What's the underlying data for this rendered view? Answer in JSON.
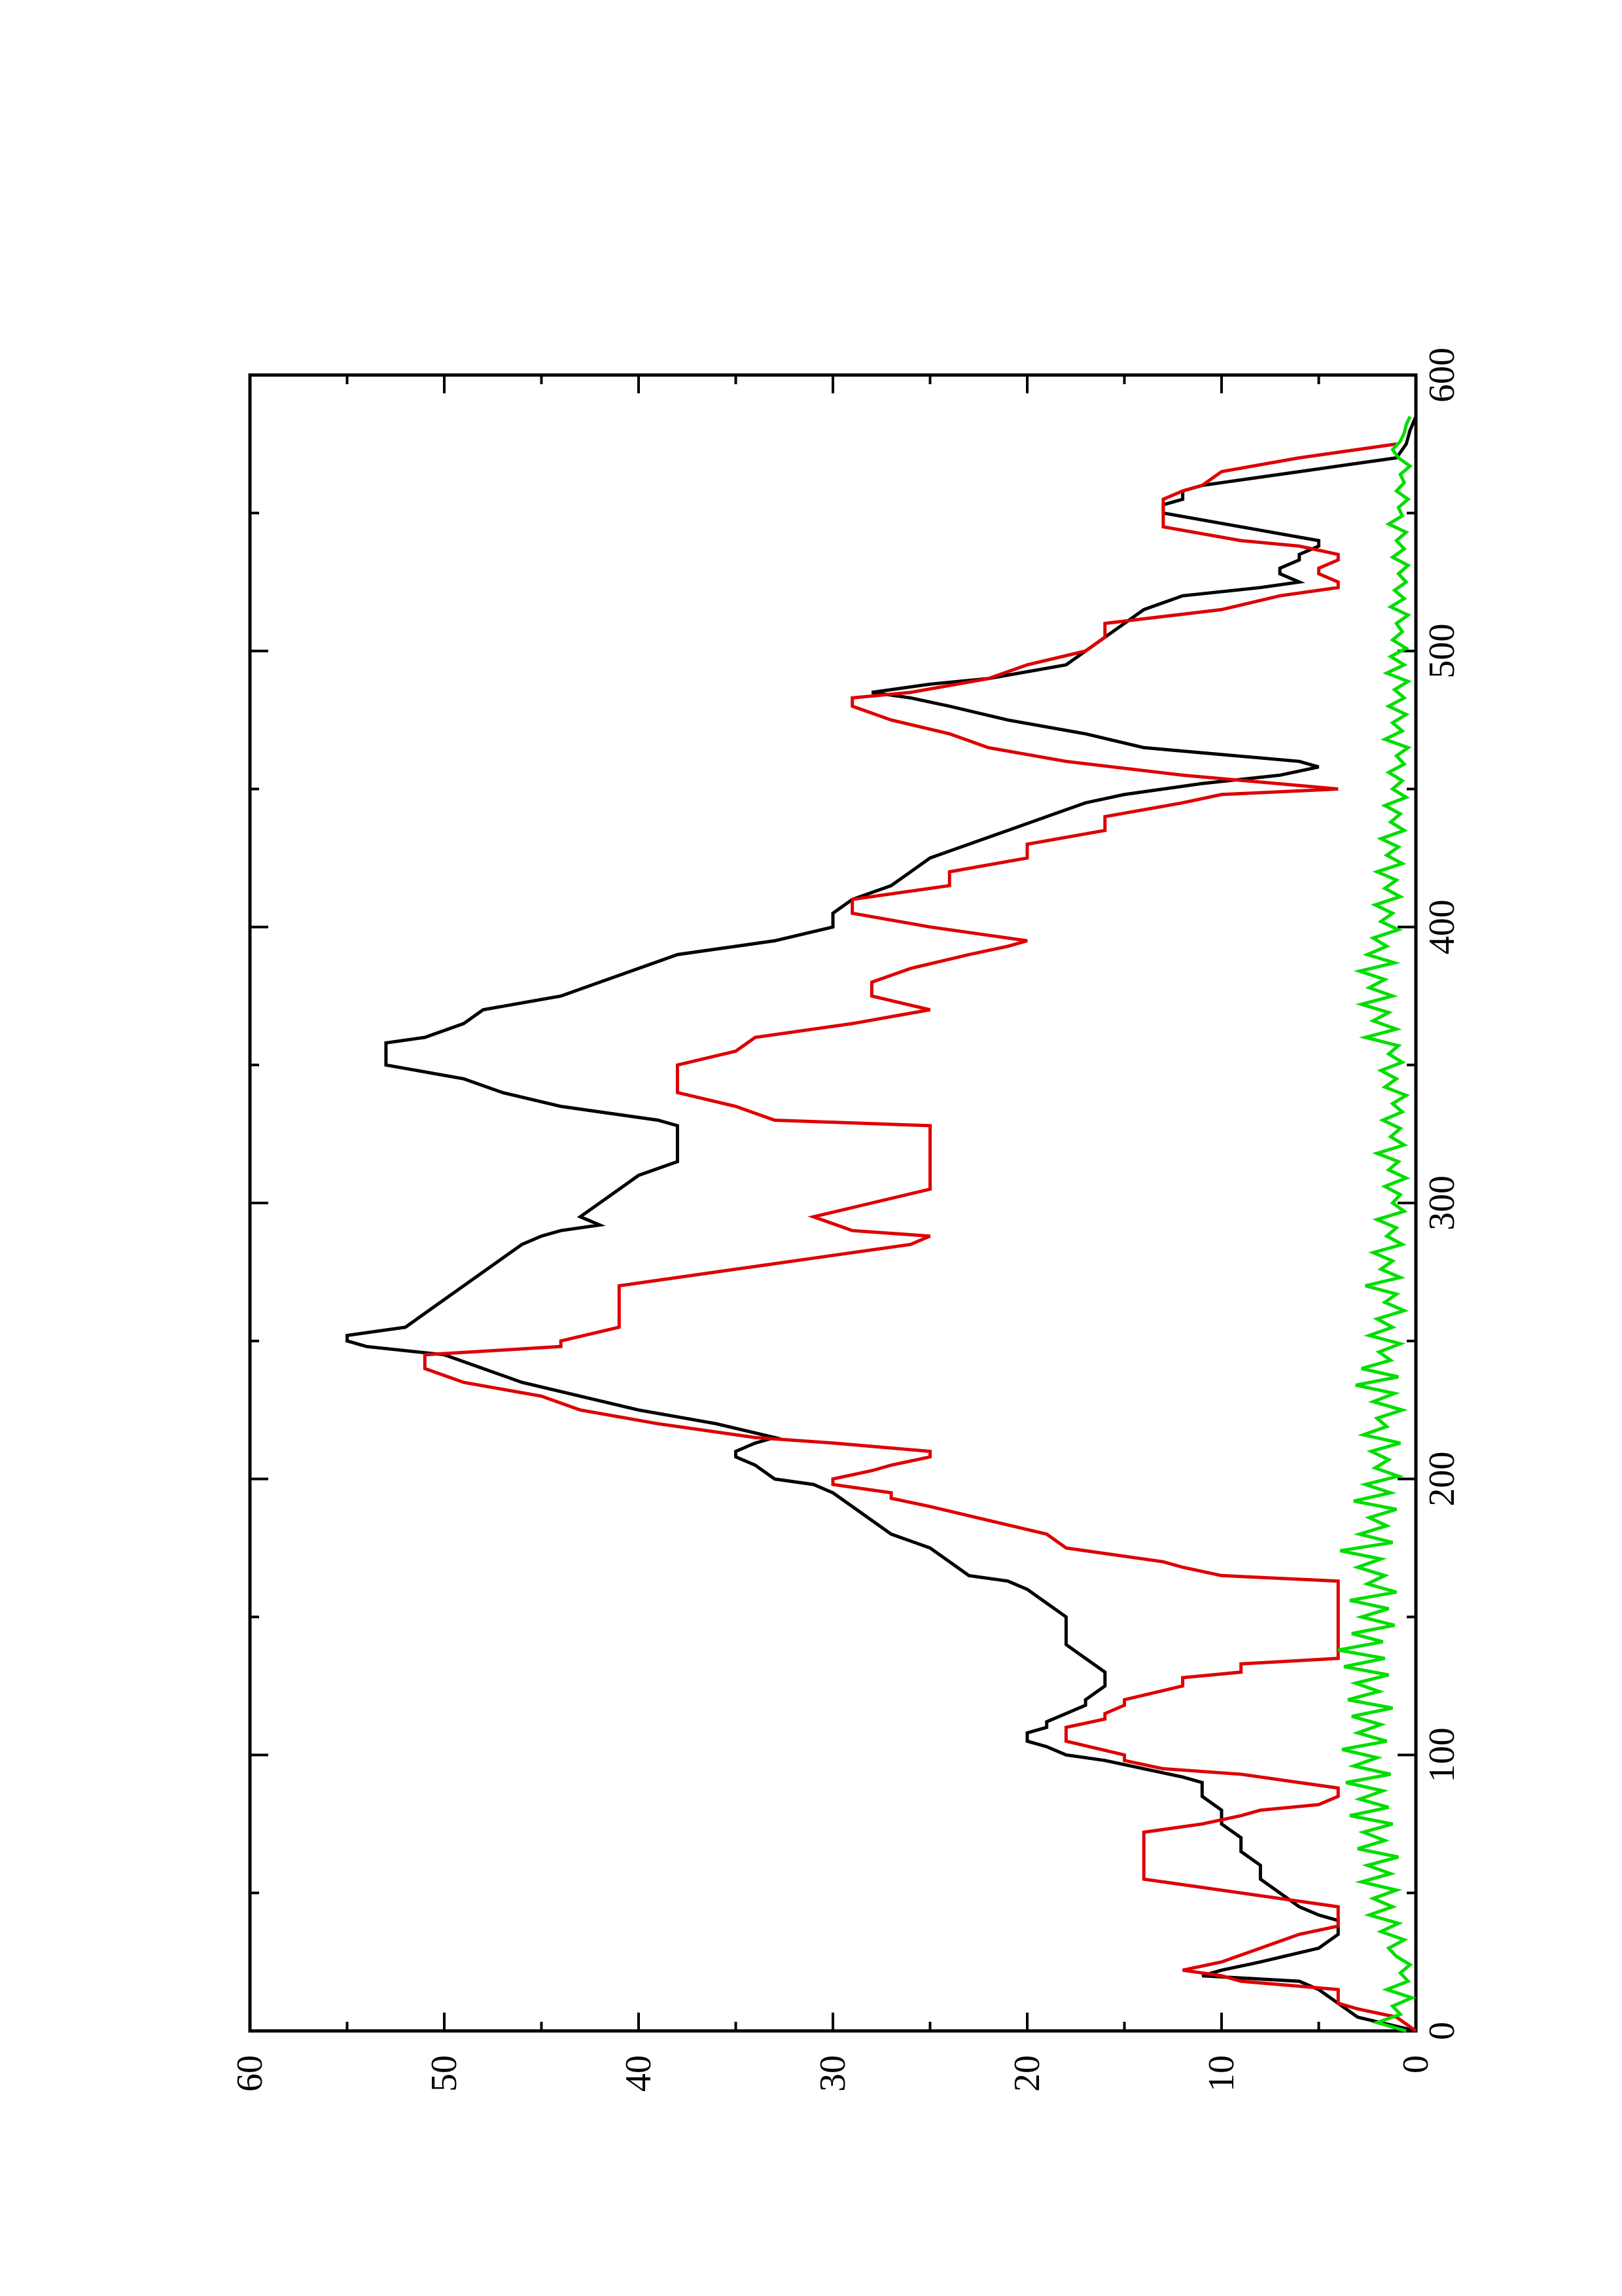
{
  "chart_data": {
    "type": "line",
    "title": "",
    "xlabel": "",
    "ylabel": "",
    "orientation": "rotated-90-ccw",
    "xlim": [
      0,
      600
    ],
    "ylim": [
      0,
      60
    ],
    "x_ticks": [
      0,
      100,
      200,
      300,
      400,
      500,
      600
    ],
    "x_ticks_labels": [
      "0",
      "100",
      "200",
      "300",
      "400",
      "500",
      "600"
    ],
    "y_ticks": [
      0,
      10,
      20,
      30,
      40,
      50,
      60
    ],
    "y_ticks_labels": [
      "0",
      "10",
      "20",
      "30",
      "40",
      "50",
      "60"
    ],
    "x_minor_ticks": [
      50,
      150,
      250,
      350,
      450,
      550
    ],
    "y_minor_ticks": [
      5,
      15,
      25,
      35,
      45,
      55
    ],
    "grid": false,
    "legend": "none",
    "series": [
      {
        "color": "#000000",
        "x": [
          0,
          5,
          10,
          15,
          18,
          20,
          22,
          25,
          30,
          35,
          38,
          40,
          42,
          45,
          50,
          55,
          60,
          65,
          70,
          75,
          80,
          85,
          90,
          92,
          95,
          98,
          100,
          103,
          105,
          108,
          110,
          112,
          115,
          118,
          120,
          125,
          130,
          135,
          140,
          143,
          145,
          150,
          155,
          160,
          163,
          165,
          170,
          175,
          180,
          185,
          190,
          195,
          198,
          200,
          205,
          208,
          210,
          213,
          215,
          220,
          225,
          230,
          235,
          240,
          245,
          248,
          250,
          252,
          255,
          260,
          265,
          270,
          275,
          280,
          285,
          288,
          290,
          292,
          295,
          300,
          305,
          310,
          315,
          320,
          323,
          325,
          328,
          330,
          335,
          340,
          345,
          350,
          355,
          358,
          360,
          365,
          370,
          375,
          380,
          385,
          390,
          395,
          400,
          405,
          410,
          415,
          420,
          425,
          430,
          435,
          440,
          445,
          448,
          450,
          452,
          455,
          458,
          460,
          465,
          470,
          475,
          480,
          483,
          485,
          488,
          490,
          495,
          500,
          505,
          510,
          515,
          520,
          523,
          525,
          528,
          530,
          533,
          535,
          538,
          540,
          545,
          550,
          553,
          555,
          558,
          560,
          563,
          565,
          568,
          570,
          575,
          580,
          585
        ],
        "y": [
          0,
          3,
          4,
          5,
          6,
          11,
          10,
          8,
          5,
          4,
          4,
          4,
          5,
          6,
          7,
          8,
          8,
          9,
          9,
          10,
          10,
          11,
          11,
          12,
          14,
          16,
          18,
          19,
          20,
          20,
          19,
          19,
          18,
          17,
          17,
          16,
          16,
          17,
          18,
          18,
          18,
          18,
          19,
          20,
          21,
          23,
          24,
          25,
          27,
          28,
          29,
          30,
          31,
          33,
          34,
          35,
          35,
          34,
          33,
          36,
          40,
          43,
          46,
          48,
          50,
          54,
          55,
          55,
          52,
          51,
          50,
          49,
          48,
          47,
          46,
          45,
          44,
          42,
          43,
          42,
          41,
          40,
          38,
          38,
          38,
          38,
          38,
          39,
          44,
          47,
          49,
          53,
          53,
          53,
          51,
          49,
          48,
          44,
          42,
          40,
          38,
          33,
          30,
          30,
          29,
          27,
          26,
          25,
          23,
          21,
          19,
          17,
          15,
          13,
          11,
          7,
          5,
          6,
          14,
          17,
          21,
          24,
          26,
          28,
          25,
          22,
          18,
          17,
          16,
          15,
          14,
          12,
          8,
          6,
          7,
          7,
          6,
          6,
          5,
          5,
          9,
          13,
          13,
          12,
          12,
          11,
          8,
          6,
          3,
          1,
          0.5,
          0.3,
          0
        ]
      },
      {
        "color": "#dd0000",
        "x": [
          0,
          5,
          8,
          10,
          15,
          18,
          20,
          22,
          25,
          30,
          35,
          38,
          40,
          42,
          45,
          50,
          55,
          60,
          65,
          70,
          72,
          75,
          78,
          80,
          82,
          85,
          88,
          90,
          93,
          95,
          98,
          100,
          105,
          108,
          110,
          113,
          115,
          118,
          120,
          125,
          128,
          130,
          133,
          135,
          138,
          140,
          145,
          150,
          155,
          160,
          163,
          165,
          168,
          170,
          175,
          180,
          185,
          190,
          193,
          195,
          198,
          200,
          203,
          205,
          208,
          210,
          213,
          215,
          220,
          225,
          230,
          235,
          240,
          245,
          248,
          250,
          255,
          260,
          265,
          270,
          275,
          280,
          285,
          288,
          290,
          295,
          300,
          305,
          310,
          315,
          320,
          325,
          328,
          330,
          335,
          340,
          343,
          345,
          350,
          355,
          360,
          365,
          370,
          375,
          380,
          385,
          390,
          393,
          395,
          400,
          405,
          410,
          415,
          420,
          425,
          430,
          435,
          440,
          445,
          448,
          450,
          455,
          460,
          465,
          470,
          475,
          480,
          483,
          485,
          490,
          495,
          500,
          505,
          510,
          515,
          520,
          523,
          525,
          528,
          530,
          533,
          535,
          538,
          540,
          545,
          550,
          553,
          555,
          558,
          560,
          565,
          570,
          575
        ],
        "y": [
          0,
          1,
          3,
          4,
          4,
          9,
          10,
          12,
          10,
          8,
          6,
          4,
          4,
          4,
          4,
          9,
          14,
          14,
          14,
          14,
          14,
          11,
          9,
          8,
          5,
          4,
          4,
          6,
          9,
          13,
          15,
          15,
          18,
          18,
          18,
          16,
          16,
          15,
          15,
          12,
          12,
          9,
          9,
          4,
          4,
          4,
          4,
          4,
          4,
          4,
          4,
          10,
          12,
          13,
          18,
          19,
          22,
          25,
          27,
          27,
          30,
          30,
          28,
          27,
          25,
          25,
          30,
          34,
          39,
          43,
          45,
          49,
          51,
          51,
          44,
          44,
          41,
          41,
          41,
          41,
          36,
          31,
          26,
          25,
          29,
          31,
          28,
          25,
          25,
          25,
          25,
          25,
          25,
          33,
          35,
          38,
          38,
          38,
          38,
          35,
          34,
          29,
          25,
          28,
          28,
          26,
          23,
          21,
          20,
          25,
          29,
          29,
          24,
          24,
          20,
          20,
          16,
          16,
          12,
          10,
          4,
          12,
          18,
          22,
          24,
          27,
          29,
          29,
          26,
          22,
          20,
          17,
          16,
          16,
          10,
          7,
          4,
          4,
          5,
          5,
          4,
          4,
          6,
          9,
          13,
          13,
          13,
          13,
          12,
          11,
          10,
          6,
          1
        ],
        "shape": "step"
      },
      {
        "color": "#00dd00",
        "x": [
          0,
          3,
          6,
          9,
          12,
          15,
          18,
          21,
          24,
          27,
          30,
          33,
          36,
          39,
          42,
          45,
          48,
          51,
          54,
          57,
          60,
          63,
          66,
          69,
          72,
          75,
          78,
          81,
          84,
          87,
          90,
          93,
          96,
          99,
          102,
          105,
          108,
          111,
          114,
          117,
          120,
          123,
          126,
          129,
          132,
          135,
          138,
          141,
          144,
          147,
          150,
          153,
          156,
          159,
          162,
          165,
          168,
          171,
          174,
          177,
          180,
          183,
          186,
          189,
          192,
          195,
          198,
          201,
          204,
          207,
          210,
          213,
          216,
          219,
          222,
          225,
          228,
          231,
          234,
          237,
          240,
          243,
          246,
          249,
          252,
          255,
          258,
          261,
          264,
          267,
          270,
          273,
          276,
          279,
          282,
          285,
          288,
          291,
          294,
          297,
          300,
          303,
          306,
          309,
          312,
          315,
          318,
          321,
          324,
          327,
          330,
          333,
          336,
          339,
          342,
          345,
          348,
          351,
          354,
          357,
          360,
          363,
          366,
          369,
          372,
          375,
          378,
          381,
          384,
          387,
          390,
          393,
          396,
          399,
          402,
          405,
          408,
          411,
          414,
          417,
          420,
          423,
          426,
          429,
          432,
          435,
          438,
          441,
          444,
          447,
          450,
          453,
          456,
          459,
          462,
          465,
          468,
          471,
          474,
          477,
          480,
          483,
          486,
          489,
          492,
          495,
          498,
          501,
          504,
          507,
          510,
          513,
          516,
          519,
          522,
          525,
          528,
          531,
          534,
          537,
          540,
          543,
          546,
          549,
          552,
          555,
          558,
          561,
          564,
          567,
          570,
          573,
          576,
          579,
          582,
          585
        ],
        "y": [
          0.5,
          2.0,
          0.8,
          1.2,
          0.2,
          1.5,
          0.4,
          0.8,
          0.3,
          1.0,
          1.4,
          0.6,
          1.8,
          0.9,
          2.4,
          1.2,
          2.2,
          1.0,
          2.8,
          1.3,
          2.5,
          0.9,
          3.0,
          1.6,
          2.7,
          1.2,
          3.4,
          1.4,
          2.9,
          1.7,
          3.6,
          1.3,
          3.2,
          2.0,
          3.8,
          1.5,
          3.0,
          1.8,
          3.3,
          1.2,
          3.5,
          1.9,
          3.1,
          1.4,
          3.7,
          1.6,
          4.0,
          1.7,
          3.3,
          1.1,
          2.8,
          1.4,
          3.4,
          1.0,
          2.5,
          1.6,
          3.0,
          1.8,
          3.9,
          1.2,
          2.9,
          1.5,
          2.4,
          1.0,
          3.2,
          1.3,
          2.6,
          0.9,
          2.1,
          1.4,
          2.3,
          0.8,
          2.7,
          1.5,
          2.0,
          0.7,
          2.2,
          1.1,
          3.1,
          0.9,
          2.8,
          1.3,
          1.9,
          0.8,
          2.4,
          1.2,
          2.0,
          0.6,
          1.6,
          1.0,
          2.6,
          0.8,
          1.8,
          1.2,
          2.2,
          0.7,
          1.5,
          1.0,
          2.0,
          0.6,
          1.2,
          0.8,
          1.6,
          0.5,
          1.4,
          0.9,
          2.0,
          0.6,
          1.3,
          0.8,
          1.7,
          0.7,
          1.2,
          0.5,
          1.6,
          1.0,
          1.8,
          0.7,
          1.4,
          0.9,
          2.6,
          1.0,
          2.2,
          1.4,
          2.8,
          1.2,
          2.4,
          1.6,
          2.9,
          1.1,
          2.5,
          1.5,
          2.2,
          0.9,
          1.8,
          1.2,
          2.1,
          0.8,
          1.6,
          1.0,
          2.0,
          0.7,
          1.5,
          0.9,
          1.8,
          0.6,
          1.3,
          0.8,
          1.6,
          0.5,
          1.2,
          0.7,
          1.4,
          0.6,
          1.0,
          0.4,
          1.6,
          0.7,
          1.2,
          0.5,
          1.4,
          0.6,
          1.1,
          0.4,
          1.5,
          0.6,
          1.3,
          0.5,
          1.2,
          0.7,
          1.0,
          0.4,
          1.3,
          0.6,
          1.1,
          0.5,
          0.9,
          0.4,
          1.2,
          0.6,
          1.0,
          0.5,
          1.4,
          0.7,
          0.9,
          0.4,
          1.0,
          0.6,
          0.8,
          0.3,
          0.9,
          1.2,
          0.8,
          0.6,
          0.5,
          0.3
        ]
      }
    ]
  }
}
